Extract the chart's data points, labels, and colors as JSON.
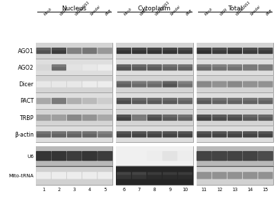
{
  "section_labels": [
    "Nucleus",
    "Cytoplasm",
    "Total"
  ],
  "col_labels": [
    "Mock",
    "WSN",
    "WSNΔNS1",
    "Sendai",
    "PR8"
  ],
  "row_labels": [
    "AGO1",
    "AGO2",
    "Dicer",
    "PACT",
    "TRBP",
    "β-actin"
  ],
  "rna_row_labels": [
    "U6",
    "Mito-tRNA"
  ],
  "lane_numbers": [
    "1",
    "2",
    "3",
    "4",
    "5",
    "6",
    "7",
    "8",
    "9",
    "10",
    "11",
    "12",
    "13",
    "14",
    "15"
  ],
  "band_data": {
    "AGO1": {
      "Nucleus": [
        0.75,
        0.85,
        0.55,
        0.6,
        0.45
      ],
      "Cytoplasm": [
        0.88,
        0.88,
        0.88,
        0.88,
        0.85
      ],
      "Total": [
        0.9,
        0.85,
        0.88,
        0.85,
        0.85
      ]
    },
    "AGO2": {
      "Nucleus": [
        0.18,
        0.65,
        0.12,
        0.1,
        0.08
      ],
      "Cytoplasm": [
        0.75,
        0.72,
        0.72,
        0.68,
        0.68
      ],
      "Total": [
        0.65,
        0.62,
        0.62,
        0.58,
        0.58
      ]
    },
    "Dicer": {
      "Nucleus": [
        0.1,
        0.1,
        0.1,
        0.08,
        0.08
      ],
      "Cytoplasm": [
        0.7,
        0.65,
        0.65,
        0.75,
        0.62
      ],
      "Total": [
        0.52,
        0.48,
        0.52,
        0.48,
        0.48
      ]
    },
    "PACT": {
      "Nucleus": [
        0.38,
        0.58,
        0.35,
        0.3,
        0.22
      ],
      "Cytoplasm": [
        0.78,
        0.72,
        0.72,
        0.72,
        0.68
      ],
      "Total": [
        0.72,
        0.68,
        0.68,
        0.68,
        0.68
      ]
    },
    "TRBP": {
      "Nucleus": [
        0.42,
        0.42,
        0.52,
        0.47,
        0.38
      ],
      "Cytoplasm": [
        0.82,
        0.58,
        0.78,
        0.72,
        0.68
      ],
      "Total": [
        0.82,
        0.78,
        0.78,
        0.72,
        0.72
      ]
    },
    "b-actin": {
      "Nucleus": [
        0.68,
        0.68,
        0.68,
        0.68,
        0.62
      ],
      "Cytoplasm": [
        0.82,
        0.82,
        0.82,
        0.82,
        0.82
      ],
      "Total": [
        0.82,
        0.82,
        0.82,
        0.82,
        0.82
      ]
    }
  },
  "rna_data": {
    "U6": {
      "Nucleus": [
        0.88,
        0.88,
        0.85,
        0.88,
        0.85
      ],
      "Cytoplasm": [
        0.04,
        0.04,
        0.08,
        0.12,
        0.08
      ],
      "Total": [
        0.82,
        0.82,
        0.82,
        0.82,
        0.78
      ]
    },
    "Mito-tRNA": {
      "Nucleus": [
        0.08,
        0.08,
        0.08,
        0.08,
        0.08
      ],
      "Cytoplasm": [
        0.88,
        0.88,
        0.92,
        0.92,
        0.92
      ],
      "Total": [
        0.48,
        0.48,
        0.48,
        0.48,
        0.48
      ]
    }
  },
  "panel_bg_light": "#e0e0e0",
  "panel_bg_dark": "#c8c8c8",
  "rna_u6_bg": "#c0c0c0",
  "rna_mito_bg": "#d8d8d8",
  "cytoplasm_u6_bg": "#f0f0f0",
  "cytoplasm_mito_bg": "#1a1a1a"
}
